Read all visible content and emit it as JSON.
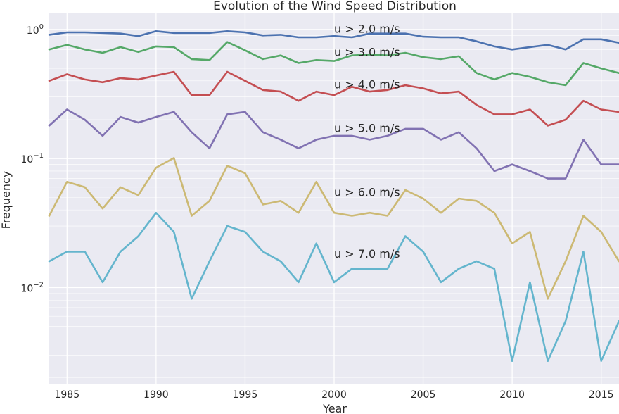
{
  "chart_data": {
    "type": "line",
    "title": "Evolution of the Wind Speed Distribution",
    "xlabel": "Year",
    "ylabel": "Frequency",
    "yscale": "log",
    "xlim": [
      1984,
      2016
    ],
    "ylim": [
      0.0018,
      1.35
    ],
    "xticks": [
      1985,
      1990,
      1995,
      2000,
      2005,
      2010,
      2015
    ],
    "xtick_labels": [
      "1985",
      "1990",
      "1995",
      "2000",
      "2005",
      "2010",
      "2015"
    ],
    "yticks": [
      {
        "value": 1,
        "base": "10",
        "exp": "0"
      },
      {
        "value": 0.1,
        "base": "10",
        "exp": "−1"
      },
      {
        "value": 0.01,
        "base": "10",
        "exp": "−2"
      }
    ],
    "grid": true,
    "x": [
      1984,
      1985,
      1986,
      1987,
      1988,
      1989,
      1990,
      1991,
      1992,
      1993,
      1994,
      1995,
      1996,
      1997,
      1998,
      1999,
      2000,
      2001,
      2002,
      2003,
      2004,
      2005,
      2006,
      2007,
      2008,
      2009,
      2010,
      2011,
      2012,
      2013,
      2014,
      2015,
      2016
    ],
    "series": [
      {
        "color": "#4c72b0",
        "values": [
          0.91,
          0.95,
          0.95,
          0.94,
          0.93,
          0.89,
          0.97,
          0.94,
          0.94,
          0.94,
          0.97,
          0.95,
          0.9,
          0.91,
          0.87,
          0.87,
          0.89,
          0.87,
          0.93,
          0.93,
          0.93,
          0.88,
          0.87,
          0.87,
          0.81,
          0.74,
          0.7,
          0.73,
          0.76,
          0.7,
          0.84,
          0.84,
          0.79
        ]
      },
      {
        "color": "#55a868",
        "values": [
          0.7,
          0.76,
          0.7,
          0.66,
          0.73,
          0.67,
          0.74,
          0.73,
          0.59,
          0.58,
          0.8,
          0.69,
          0.59,
          0.63,
          0.55,
          0.58,
          0.57,
          0.63,
          0.64,
          0.63,
          0.66,
          0.61,
          0.59,
          0.62,
          0.46,
          0.41,
          0.46,
          0.43,
          0.39,
          0.37,
          0.55,
          0.5,
          0.46
        ]
      },
      {
        "color": "#c44e52",
        "values": [
          0.4,
          0.45,
          0.41,
          0.39,
          0.42,
          0.41,
          0.44,
          0.47,
          0.31,
          0.31,
          0.47,
          0.4,
          0.34,
          0.33,
          0.28,
          0.33,
          0.31,
          0.36,
          0.33,
          0.34,
          0.37,
          0.35,
          0.32,
          0.33,
          0.26,
          0.22,
          0.22,
          0.24,
          0.18,
          0.2,
          0.28,
          0.24,
          0.23
        ]
      },
      {
        "color": "#8172b2",
        "values": [
          0.18,
          0.24,
          0.2,
          0.15,
          0.21,
          0.19,
          0.21,
          0.23,
          0.16,
          0.12,
          0.22,
          0.23,
          0.16,
          0.14,
          0.12,
          0.14,
          0.15,
          0.15,
          0.14,
          0.15,
          0.17,
          0.17,
          0.14,
          0.16,
          0.12,
          0.08,
          0.09,
          0.08,
          0.07,
          0.07,
          0.14,
          0.09,
          0.09
        ]
      },
      {
        "color": "#ccb974",
        "values": [
          0.036,
          0.066,
          0.06,
          0.041,
          0.06,
          0.052,
          0.085,
          0.101,
          0.036,
          0.047,
          0.088,
          0.077,
          0.044,
          0.047,
          0.038,
          0.066,
          0.038,
          0.036,
          0.038,
          0.036,
          0.057,
          0.049,
          0.038,
          0.049,
          0.047,
          0.038,
          0.022,
          0.027,
          0.0082,
          0.016,
          0.036,
          0.027,
          0.016
        ]
      },
      {
        "color": "#64b5cd",
        "values": [
          0.016,
          0.019,
          0.019,
          0.011,
          0.019,
          0.025,
          0.038,
          0.027,
          0.0082,
          0.016,
          0.03,
          0.027,
          0.019,
          0.016,
          0.011,
          0.022,
          0.011,
          0.014,
          0.014,
          0.014,
          0.025,
          0.019,
          0.011,
          0.014,
          0.016,
          0.014,
          0.0027,
          0.011,
          0.0027,
          0.0055,
          0.019,
          0.0027,
          0.0055
        ]
      }
    ],
    "annotations": [
      {
        "text": "u > 2.0 m/s",
        "x": 2000,
        "y": 1.0
      },
      {
        "text": "u > 3.0 m/s",
        "x": 2000,
        "y": 0.66
      },
      {
        "text": "u > 4.0 m/s",
        "x": 2000,
        "y": 0.37
      },
      {
        "text": "u > 5.0 m/s",
        "x": 2000,
        "y": 0.17
      },
      {
        "text": "u > 6.0 m/s",
        "x": 2000,
        "y": 0.054
      },
      {
        "text": "u > 7.0 m/s",
        "x": 2000,
        "y": 0.018
      }
    ],
    "colors": {
      "background": "#eaeaf2",
      "grid": "#ffffff",
      "text": "#262626"
    }
  }
}
